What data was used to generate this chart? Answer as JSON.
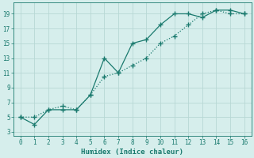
{
  "line1_x": [
    0,
    1,
    2,
    3,
    4,
    5,
    6,
    7,
    8,
    9,
    10,
    11,
    12,
    13,
    14,
    15,
    16
  ],
  "line1_y": [
    5,
    4,
    6,
    6,
    6,
    8,
    13,
    11,
    15,
    15.5,
    17.5,
    19,
    19,
    18.5,
    19.5,
    19.5,
    19
  ],
  "line2_x": [
    0,
    1,
    2,
    3,
    4,
    5,
    6,
    7,
    8,
    9,
    10,
    11,
    12,
    13,
    14,
    15,
    16
  ],
  "line2_y": [
    5,
    5,
    6,
    6.5,
    6,
    8,
    10.5,
    11,
    12,
    13,
    15,
    16,
    17.5,
    19,
    19.5,
    19,
    19
  ],
  "line_color": "#1a7a6e",
  "bg_color": "#d6eeec",
  "grid_color": "#b8d8d5",
  "xlabel": "Humidex (Indice chaleur)",
  "xlim": [
    -0.5,
    16.5
  ],
  "ylim": [
    2.5,
    20.5
  ],
  "xticks": [
    0,
    1,
    2,
    3,
    4,
    5,
    6,
    7,
    8,
    9,
    10,
    11,
    12,
    13,
    14,
    15,
    16
  ],
  "yticks": [
    3,
    5,
    7,
    9,
    11,
    13,
    15,
    17,
    19
  ],
  "font_color": "#1a7a6e"
}
